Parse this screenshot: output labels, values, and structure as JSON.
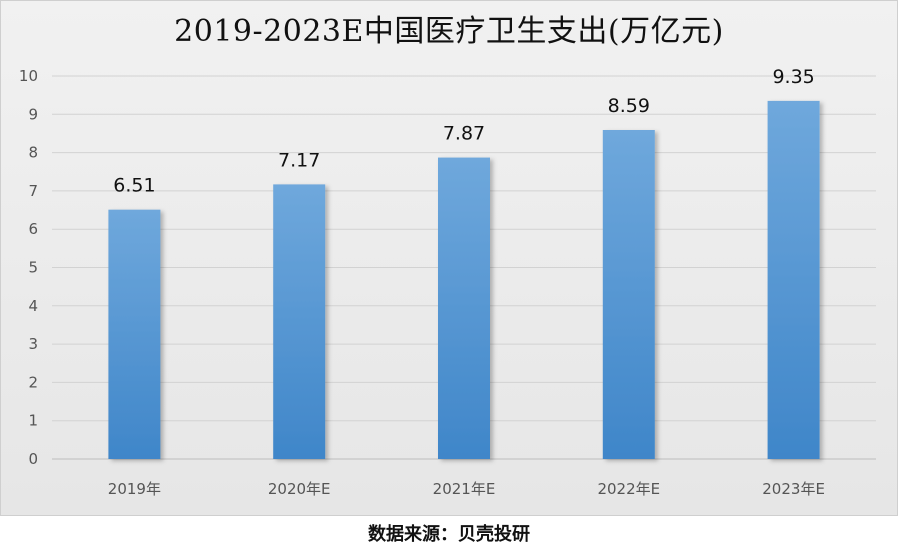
{
  "chart_data": {
    "type": "bar",
    "title": "2019-2023E中国医疗卫生支出(万亿元)",
    "source": "数据来源：贝壳投研",
    "categories": [
      "2019年",
      "2020年E",
      "2021年E",
      "2022年E",
      "2023年E"
    ],
    "values": [
      6.51,
      7.17,
      7.87,
      8.59,
      9.35
    ],
    "data_labels": [
      "6.51",
      "7.17",
      "7.87",
      "8.59",
      "9.35"
    ],
    "yticks": [
      "0",
      "1",
      "2",
      "3",
      "4",
      "5",
      "6",
      "7",
      "8",
      "9",
      "10"
    ],
    "ylim": [
      0,
      10
    ],
    "grid": true,
    "legend": "none",
    "bar_color": "#5b9bd5"
  }
}
